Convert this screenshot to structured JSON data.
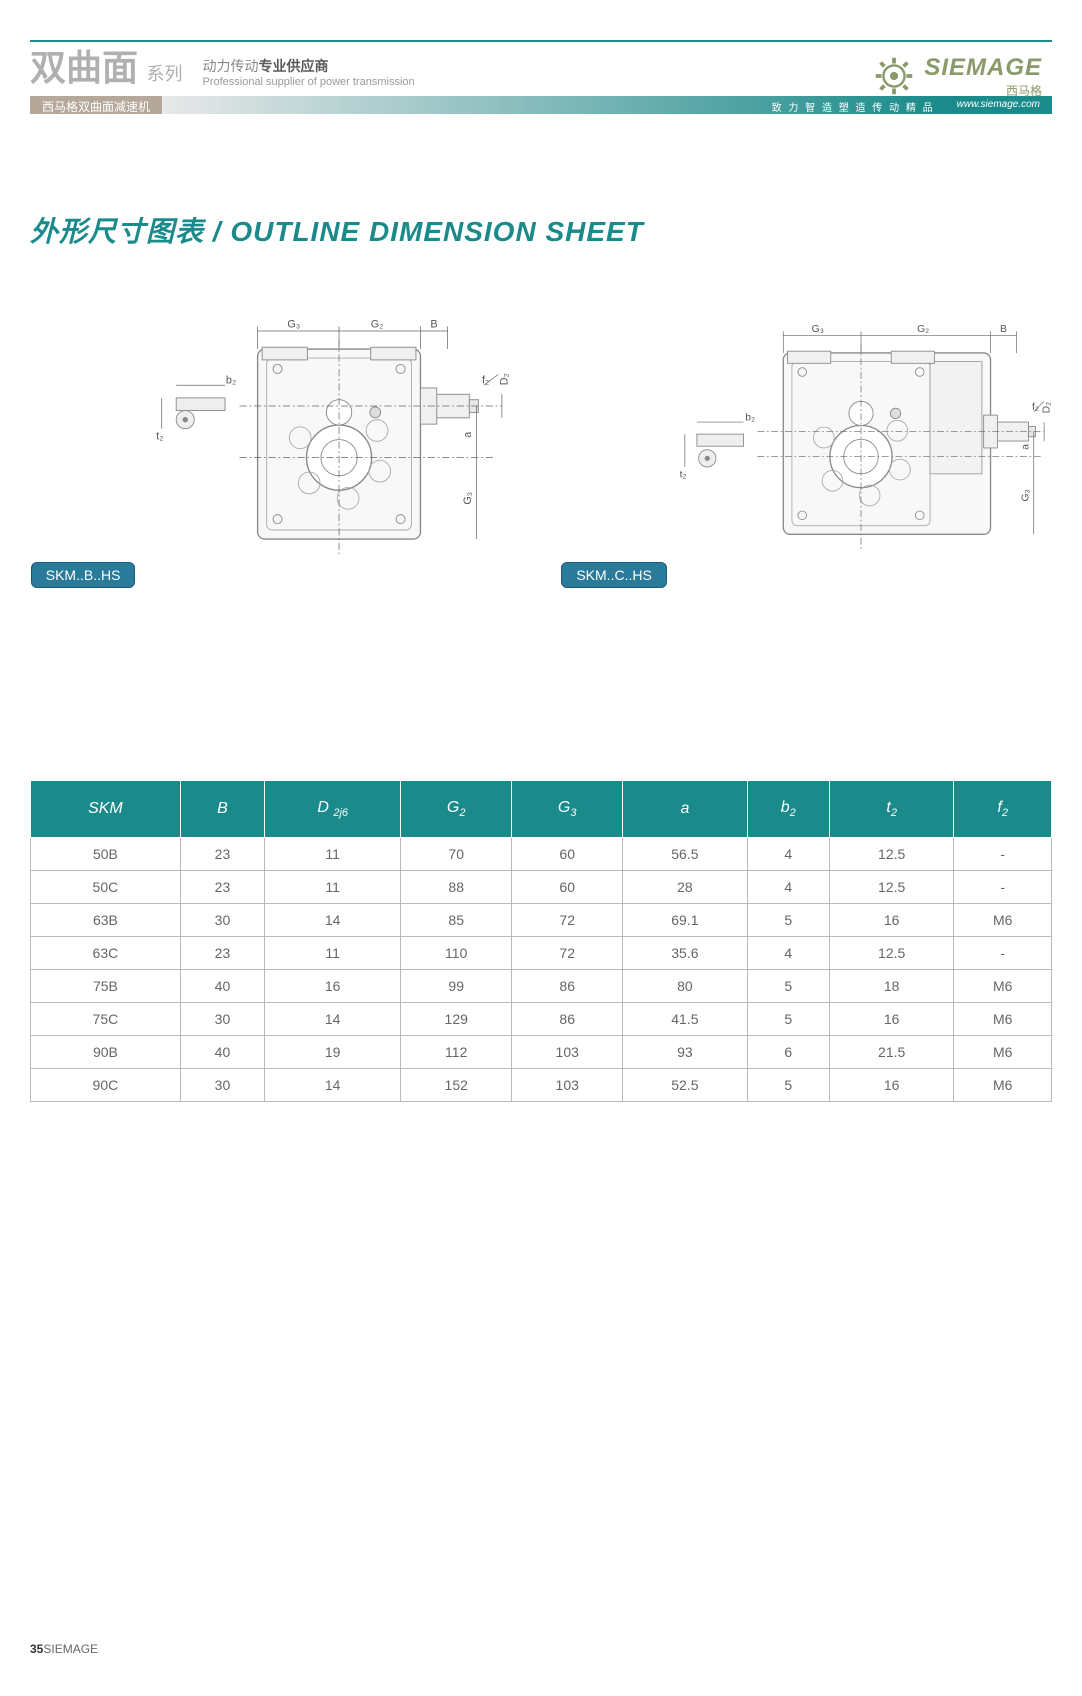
{
  "banner": {
    "series_cn": "双曲面",
    "series_suffix": "系列",
    "tagline_cn_pre": "动力传动",
    "tagline_cn_bold": "专业供应商",
    "tagline_en": "Professional supplier of power transmission",
    "strip_left": "西马格双曲面减速机",
    "strip_mid": "致 力 智 造 塑 造 传 动 精 品",
    "strip_url": "www.siemage.com",
    "logo_text": "SIEMAGE",
    "logo_cn": "西马格",
    "colors": {
      "teal": "#1a8a8a",
      "olive": "#8a9a6a",
      "tan": "#b5a89a",
      "badge": "#2a7a9a"
    }
  },
  "section_title": "外形尺寸图表 / OUTLINE DIMENSION SHEET",
  "diagrams": {
    "left": {
      "badge": "SKM..B..HS",
      "labels": {
        "G3": "G₃",
        "G2": "G₂",
        "B": "B",
        "b2": "b₂",
        "t2": "t₂",
        "f2": "f₂",
        "D2": "D₂",
        "a": "a",
        "G3v": "G₃"
      }
    },
    "right": {
      "badge": "SKM..C..HS",
      "labels": {
        "G3": "G₃",
        "G2": "G₂",
        "B": "B",
        "b2": "b₂",
        "t2": "t₂",
        "f2": "f₂",
        "D2": "D₂",
        "a": "a",
        "G3v": "G₃"
      }
    }
  },
  "table": {
    "columns": [
      "SKM",
      "B",
      "D ₂j6",
      "G₂",
      "G₃",
      "a",
      "b₂",
      "t₂",
      "f₂"
    ],
    "rows": [
      [
        "50B",
        "23",
        "11",
        "70",
        "60",
        "56.5",
        "4",
        "12.5",
        "-"
      ],
      [
        "50C",
        "23",
        "11",
        "88",
        "60",
        "28",
        "4",
        "12.5",
        "-"
      ],
      [
        "63B",
        "30",
        "14",
        "85",
        "72",
        "69.1",
        "5",
        "16",
        "M6"
      ],
      [
        "63C",
        "23",
        "11",
        "110",
        "72",
        "35.6",
        "4",
        "12.5",
        "-"
      ],
      [
        "75B",
        "40",
        "16",
        "99",
        "86",
        "80",
        "5",
        "18",
        "M6"
      ],
      [
        "75C",
        "30",
        "14",
        "129",
        "86",
        "41.5",
        "5",
        "16",
        "M6"
      ],
      [
        "90B",
        "40",
        "19",
        "112",
        "103",
        "93",
        "6",
        "21.5",
        "M6"
      ],
      [
        "90C",
        "30",
        "14",
        "152",
        "103",
        "52.5",
        "5",
        "16",
        "M6"
      ]
    ],
    "header_bg": "#1a8a8a",
    "header_fg": "#ffffff",
    "border_color": "#bbbbbb",
    "row_fg": "#666666"
  },
  "footer": {
    "page": "35",
    "brand": "SIEMAGE"
  }
}
